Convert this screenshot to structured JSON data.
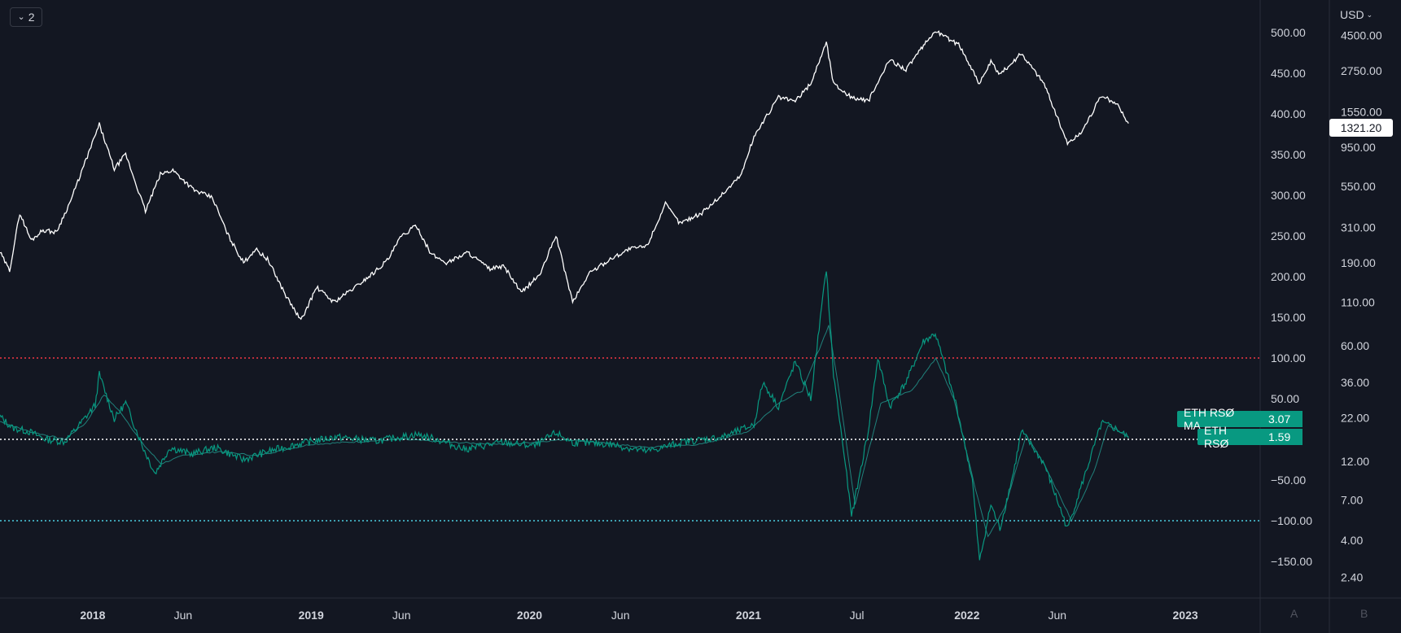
{
  "toolbar": {
    "collapse_count": "2",
    "currency": "USD"
  },
  "price_tag": "1321.20",
  "indicator_labels": [
    {
      "name": "ETH RSØ MA",
      "value": "3.07"
    },
    {
      "name": "ETH RSØ",
      "value": "1.59"
    }
  ],
  "scale_buttons": {
    "a": "A",
    "b": "B"
  },
  "colors": {
    "background": "#131722",
    "price_line": "#ffffff",
    "rso": "#089981",
    "rso_ma": "#26a69a",
    "upper_band": "#f23645",
    "zero_line": "#ffffff",
    "lower_band": "#4dd0e1"
  },
  "chart_data": {
    "type": "line",
    "title": "",
    "x_ticks": [
      {
        "label": "2018",
        "date": "2018-01-01",
        "bold": true
      },
      {
        "label": "Jun",
        "date": "2018-06-01",
        "bold": false
      },
      {
        "label": "2019",
        "date": "2019-01-01",
        "bold": true
      },
      {
        "label": "Jun",
        "date": "2019-06-01",
        "bold": false
      },
      {
        "label": "2020",
        "date": "2020-01-01",
        "bold": true
      },
      {
        "label": "Jun",
        "date": "2020-06-01",
        "bold": false
      },
      {
        "label": "2021",
        "date": "2021-01-01",
        "bold": true
      },
      {
        "label": "Jul",
        "date": "2021-07-01",
        "bold": false
      },
      {
        "label": "2022",
        "date": "2022-01-01",
        "bold": true
      },
      {
        "label": "Jun",
        "date": "2022-06-01",
        "bold": false
      },
      {
        "label": "2023",
        "date": "2023-01-01",
        "bold": true
      }
    ],
    "x_range": [
      "2017-07-30",
      "2023-05-06"
    ],
    "axis_a": {
      "ticks": [
        500,
        450,
        400,
        350,
        300,
        250,
        200,
        150,
        100,
        50,
        0,
        -50,
        -100,
        -150
      ],
      "hidden_tick_labels": [
        0
      ],
      "range": [
        -195,
        540
      ]
    },
    "axis_b": {
      "scale": "log",
      "ticks": [
        4500,
        2750,
        1550,
        950,
        550,
        310,
        190,
        110,
        60,
        36,
        22,
        12,
        7,
        4,
        2.4
      ]
    },
    "price_series": {
      "name": "",
      "unit": "USD",
      "points": [
        [
          "2017-07-30",
          220
        ],
        [
          "2017-08-15",
          170
        ],
        [
          "2017-09-01",
          380
        ],
        [
          "2017-09-20",
          260
        ],
        [
          "2017-10-10",
          300
        ],
        [
          "2017-11-01",
          290
        ],
        [
          "2017-11-25",
          450
        ],
        [
          "2017-12-15",
          700
        ],
        [
          "2018-01-12",
          1300
        ],
        [
          "2018-02-06",
          700
        ],
        [
          "2018-02-25",
          860
        ],
        [
          "2018-03-30",
          390
        ],
        [
          "2018-04-24",
          650
        ],
        [
          "2018-05-15",
          690
        ],
        [
          "2018-06-20",
          520
        ],
        [
          "2018-07-20",
          470
        ],
        [
          "2018-08-15",
          280
        ],
        [
          "2018-09-10",
          190
        ],
        [
          "2018-09-30",
          230
        ],
        [
          "2018-10-20",
          200
        ],
        [
          "2018-11-20",
          120
        ],
        [
          "2018-12-15",
          85
        ],
        [
          "2019-01-10",
          135
        ],
        [
          "2019-02-08",
          110
        ],
        [
          "2019-03-15",
          135
        ],
        [
          "2019-04-15",
          165
        ],
        [
          "2019-05-10",
          200
        ],
        [
          "2019-05-30",
          270
        ],
        [
          "2019-06-26",
          320
        ],
        [
          "2019-07-20",
          215
        ],
        [
          "2019-08-15",
          190
        ],
        [
          "2019-09-20",
          220
        ],
        [
          "2019-10-25",
          175
        ],
        [
          "2019-11-20",
          180
        ],
        [
          "2019-12-18",
          125
        ],
        [
          "2020-01-20",
          165
        ],
        [
          "2020-02-14",
          280
        ],
        [
          "2020-03-13",
          110
        ],
        [
          "2020-04-10",
          165
        ],
        [
          "2020-05-15",
          200
        ],
        [
          "2020-06-15",
          230
        ],
        [
          "2020-07-15",
          240
        ],
        [
          "2020-08-15",
          430
        ],
        [
          "2020-09-08",
          330
        ],
        [
          "2020-10-15",
          380
        ],
        [
          "2020-11-20",
          500
        ],
        [
          "2020-12-20",
          650
        ],
        [
          "2021-01-10",
          1100
        ],
        [
          "2021-02-20",
          1900
        ],
        [
          "2021-03-20",
          1800
        ],
        [
          "2021-04-15",
          2300
        ],
        [
          "2021-05-11",
          4100
        ],
        [
          "2021-05-23",
          2300
        ],
        [
          "2021-06-22",
          1900
        ],
        [
          "2021-07-20",
          1800
        ],
        [
          "2021-08-25",
          3200
        ],
        [
          "2021-09-21",
          2800
        ],
        [
          "2021-11-09",
          4800
        ],
        [
          "2021-12-20",
          3900
        ],
        [
          "2022-01-22",
          2300
        ],
        [
          "2022-02-10",
          3100
        ],
        [
          "2022-02-25",
          2600
        ],
        [
          "2022-04-02",
          3500
        ],
        [
          "2022-05-10",
          2300
        ],
        [
          "2022-06-18",
          1000
        ],
        [
          "2022-07-10",
          1150
        ],
        [
          "2022-08-14",
          1950
        ],
        [
          "2022-09-10",
          1700
        ],
        [
          "2022-09-28",
          1321.2
        ]
      ]
    },
    "rso_series": {
      "name": "ETH RSØ",
      "points": [
        [
          "2017-07-30",
          28
        ],
        [
          "2017-08-20",
          14
        ],
        [
          "2017-09-15",
          10
        ],
        [
          "2017-10-15",
          0
        ],
        [
          "2017-11-15",
          -3
        ],
        [
          "2017-12-10",
          18
        ],
        [
          "2018-01-05",
          42
        ],
        [
          "2018-01-12",
          80
        ],
        [
          "2018-02-06",
          25
        ],
        [
          "2018-02-25",
          45
        ],
        [
          "2018-03-25",
          -8
        ],
        [
          "2018-04-15",
          -42
        ],
        [
          "2018-05-10",
          -10
        ],
        [
          "2018-06-15",
          -18
        ],
        [
          "2018-07-25",
          -10
        ],
        [
          "2018-09-10",
          -25
        ],
        [
          "2018-10-20",
          -15
        ],
        [
          "2018-12-15",
          -5
        ],
        [
          "2019-02-10",
          3
        ],
        [
          "2019-04-20",
          -2
        ],
        [
          "2019-06-26",
          6
        ],
        [
          "2019-07-25",
          1
        ],
        [
          "2019-09-15",
          -12
        ],
        [
          "2019-11-15",
          -4
        ],
        [
          "2020-01-10",
          -8
        ],
        [
          "2020-02-14",
          8
        ],
        [
          "2020-03-13",
          -4
        ],
        [
          "2020-05-15",
          -6
        ],
        [
          "2020-07-15",
          -15
        ],
        [
          "2020-09-15",
          -3
        ],
        [
          "2020-11-20",
          3
        ],
        [
          "2021-01-10",
          18
        ],
        [
          "2021-01-25",
          70
        ],
        [
          "2021-02-20",
          40
        ],
        [
          "2021-03-20",
          95
        ],
        [
          "2021-04-15",
          50
        ],
        [
          "2021-05-11",
          210
        ],
        [
          "2021-05-23",
          80
        ],
        [
          "2021-06-10",
          -20
        ],
        [
          "2021-06-22",
          -95
        ],
        [
          "2021-07-20",
          10
        ],
        [
          "2021-08-05",
          100
        ],
        [
          "2021-08-25",
          40
        ],
        [
          "2021-09-21",
          70
        ],
        [
          "2021-10-20",
          120
        ],
        [
          "2021-11-09",
          130
        ],
        [
          "2021-12-15",
          40
        ],
        [
          "2022-01-10",
          -50
        ],
        [
          "2022-01-22",
          -150
        ],
        [
          "2022-02-10",
          -80
        ],
        [
          "2022-02-25",
          -110
        ],
        [
          "2022-03-20",
          -40
        ],
        [
          "2022-04-02",
          10
        ],
        [
          "2022-05-10",
          -30
        ],
        [
          "2022-06-18",
          -110
        ],
        [
          "2022-07-10",
          -60
        ],
        [
          "2022-08-14",
          20
        ],
        [
          "2022-09-10",
          12
        ],
        [
          "2022-09-28",
          1.59
        ]
      ]
    },
    "rso_ma_series": {
      "name": "ETH RSØ MA",
      "points": [
        [
          "2017-07-30",
          22
        ],
        [
          "2017-09-15",
          10
        ],
        [
          "2017-11-15",
          0
        ],
        [
          "2017-12-20",
          20
        ],
        [
          "2018-01-20",
          55
        ],
        [
          "2018-02-20",
          30
        ],
        [
          "2018-03-25",
          -5
        ],
        [
          "2018-04-25",
          -30
        ],
        [
          "2018-06-01",
          -20
        ],
        [
          "2018-08-01",
          -15
        ],
        [
          "2018-10-01",
          -20
        ],
        [
          "2019-01-01",
          -6
        ],
        [
          "2019-06-01",
          0
        ],
        [
          "2019-09-01",
          -4
        ],
        [
          "2019-12-01",
          -6
        ],
        [
          "2020-03-01",
          0
        ],
        [
          "2020-07-15",
          -10
        ],
        [
          "2020-10-15",
          -6
        ],
        [
          "2021-01-01",
          10
        ],
        [
          "2021-02-20",
          45
        ],
        [
          "2021-04-01",
          60
        ],
        [
          "2021-05-15",
          140
        ],
        [
          "2021-06-01",
          60
        ],
        [
          "2021-06-28",
          -80
        ],
        [
          "2021-08-10",
          45
        ],
        [
          "2021-10-01",
          60
        ],
        [
          "2021-11-10",
          100
        ],
        [
          "2021-12-10",
          50
        ],
        [
          "2022-01-15",
          -60
        ],
        [
          "2022-02-05",
          -120
        ],
        [
          "2022-03-05",
          -85
        ],
        [
          "2022-04-10",
          5
        ],
        [
          "2022-05-10",
          -30
        ],
        [
          "2022-06-25",
          -100
        ],
        [
          "2022-08-01",
          -40
        ],
        [
          "2022-08-25",
          18
        ],
        [
          "2022-09-28",
          3.07
        ]
      ]
    },
    "reference_lines": [
      {
        "value": 100,
        "style": "dotted",
        "color": "#f23645"
      },
      {
        "value": 0,
        "style": "dotted",
        "color": "#ffffff"
      },
      {
        "value": -100,
        "style": "dotted",
        "color": "#4dd0e1"
      }
    ],
    "grid": false,
    "legend": "right-axis labels"
  }
}
